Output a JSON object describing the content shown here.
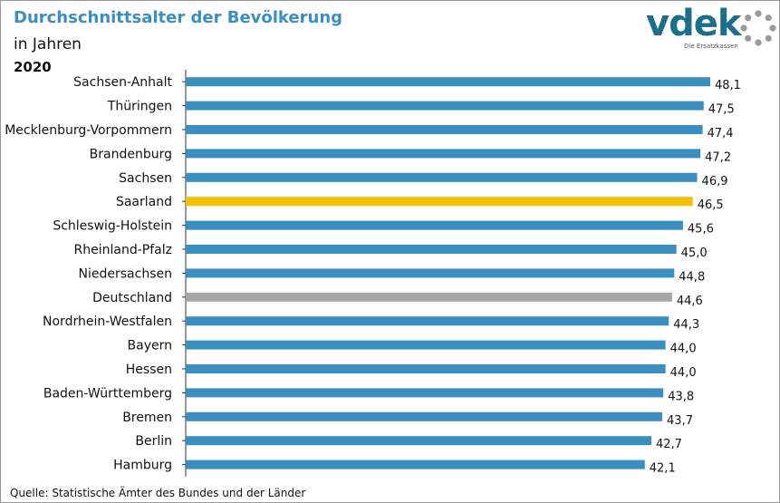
{
  "header": {
    "title": "Durchschnittsalter der Bevölkerung",
    "subtitle": "in Jahren",
    "year": "2020"
  },
  "logo": {
    "name": "vdek",
    "tagline": "Die Ersatzkassen"
  },
  "footer": {
    "source": "Quelle: Statistische Ämter des Bundes und der Länder"
  },
  "colors": {
    "default": "#3a8fc0",
    "highlight": "#f5c000",
    "reference": "#a6a6a6"
  },
  "chart_data": {
    "type": "bar",
    "orientation": "horizontal",
    "title": "Durchschnittsalter der Bevölkerung",
    "subtitle": "in Jahren",
    "year": "2020",
    "xlim": [
      0,
      48.1
    ],
    "categories": [
      "Sachsen-Anhalt",
      "Thüringen",
      "Mecklenburg-Vorpommern",
      "Brandenburg",
      "Sachsen",
      "Saarland",
      "Schleswig-Holstein",
      "Rheinland-Pfalz",
      "Niedersachsen",
      "Deutschland",
      "Nordrhein-Westfalen",
      "Bayern",
      "Hessen",
      "Baden-Württemberg",
      "Bremen",
      "Berlin",
      "Hamburg"
    ],
    "values": [
      48.1,
      47.5,
      47.4,
      47.2,
      46.9,
      46.5,
      45.6,
      45.0,
      44.8,
      44.6,
      44.3,
      44.0,
      44.0,
      43.8,
      43.7,
      42.7,
      42.1
    ],
    "value_labels": [
      "48,1",
      "47,5",
      "47,4",
      "47,2",
      "46,9",
      "46,5",
      "45,6",
      "45,0",
      "44,8",
      "44,6",
      "44,3",
      "44,0",
      "44,0",
      "43,8",
      "43,7",
      "42,7",
      "42,1"
    ],
    "highlight": {
      "Saarland": "highlight",
      "Deutschland": "reference"
    }
  }
}
